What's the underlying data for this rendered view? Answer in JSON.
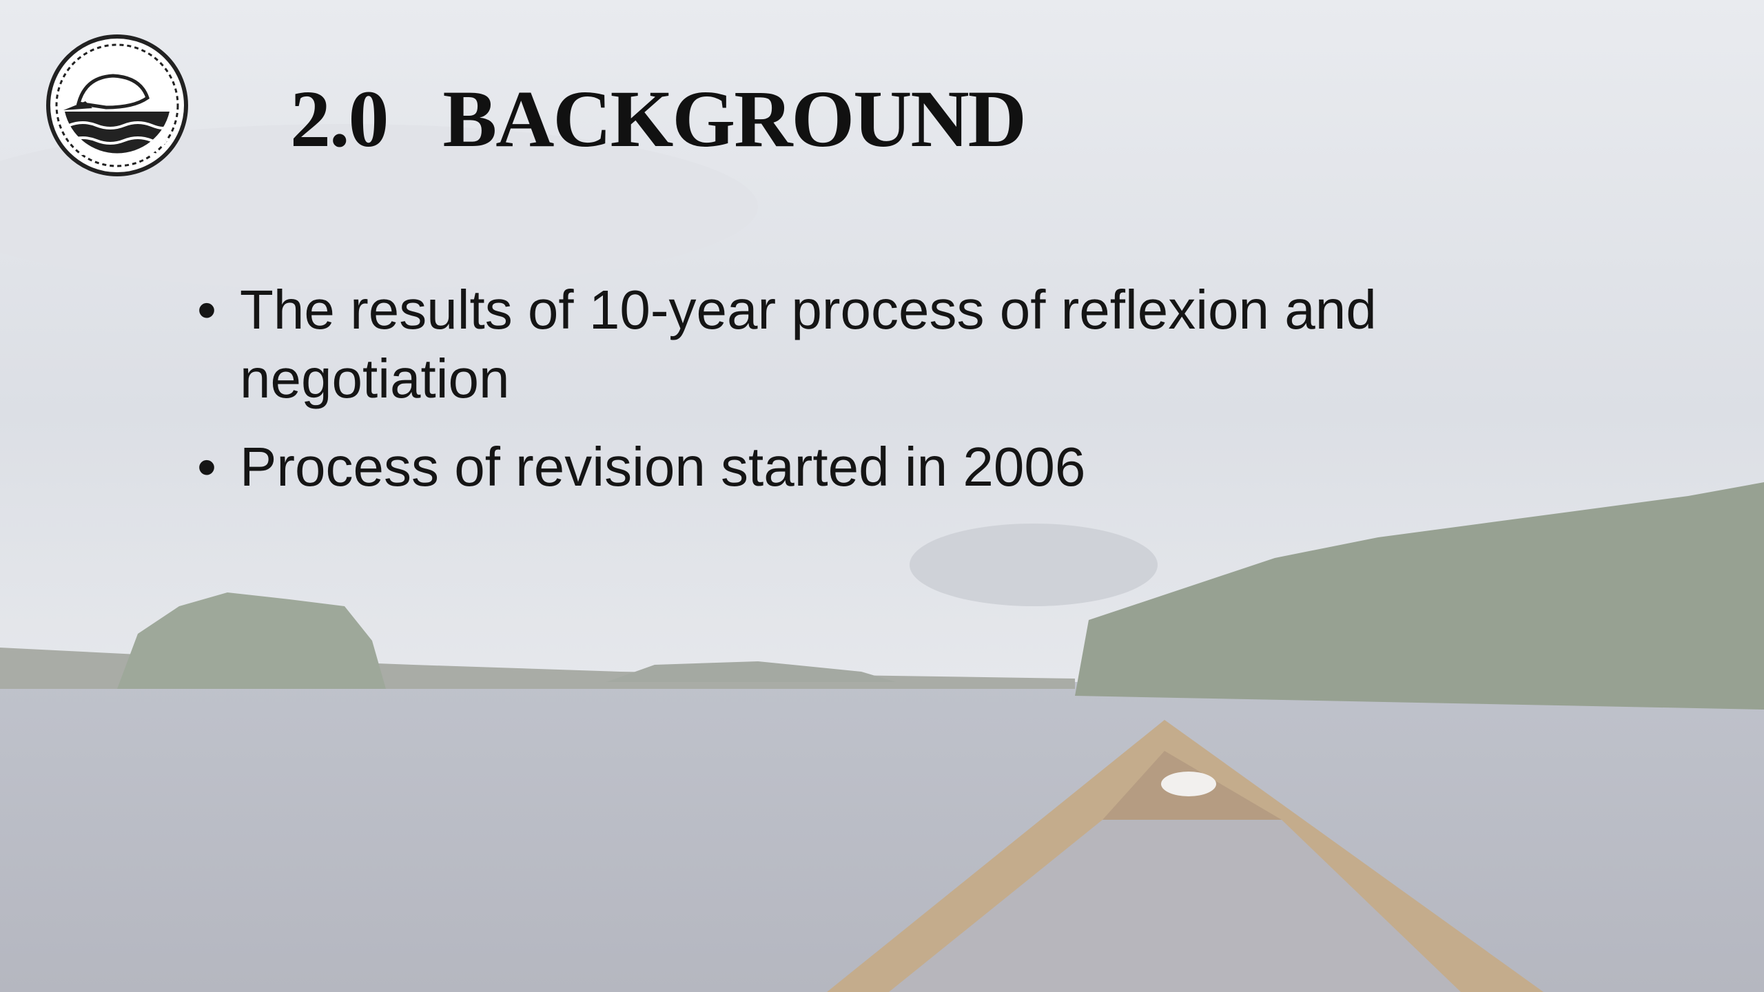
{
  "slide": {
    "section_number": "2.0",
    "title": "BACKGROUND",
    "bullets": [
      "The results of 10-year process of reflexion and negotiation",
      "Process of revision started in 2006"
    ]
  }
}
